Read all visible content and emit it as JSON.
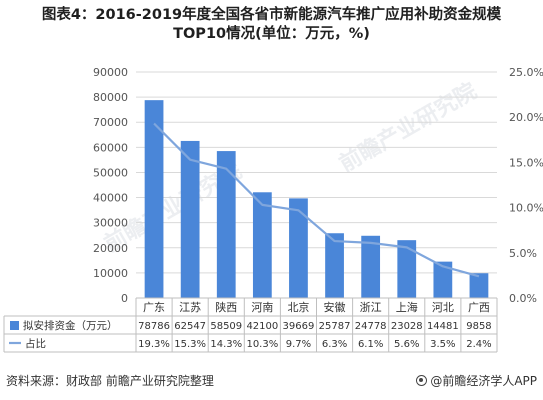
{
  "title_line1": "图表4：2016-2019年度全国各省市新能源汽车推广应用补助资金规模",
  "title_line2": "TOP10情况(单位：万元，%)",
  "source": "资料来源：财政部 前瞻产业研究院整理",
  "brand": "@前瞻经济学人APP",
  "watermarks": [
    "前瞻产业研究院",
    "前瞻产业研究院"
  ],
  "colors": {
    "bar": "#4a86d8",
    "line": "#7fa6dd",
    "grid": "#d9d9d9",
    "axis_text": "#555555"
  },
  "chart_data": {
    "type": "bar",
    "categories": [
      "广东",
      "江苏",
      "陕西",
      "河南",
      "北京",
      "安徽",
      "浙江",
      "上海",
      "河北",
      "广西"
    ],
    "series": [
      {
        "name": "拟安排资金（万元）",
        "type": "bar",
        "axis": "left",
        "values": [
          78786,
          62547,
          58509,
          42100,
          39669,
          25787,
          24778,
          23028,
          14481,
          9858
        ],
        "labels": [
          "78786",
          "62547",
          "58509",
          "42100",
          "39669",
          "25787",
          "24778",
          "23028",
          "14481",
          "9858"
        ]
      },
      {
        "name": "占比",
        "type": "line",
        "axis": "right",
        "values": [
          19.3,
          15.3,
          14.3,
          10.3,
          9.7,
          6.3,
          6.1,
          5.6,
          3.5,
          2.4
        ],
        "labels": [
          "19.3%",
          "15.3%",
          "14.3%",
          "10.3%",
          "9.7%",
          "6.3%",
          "6.1%",
          "5.6%",
          "3.5%",
          "2.4%"
        ]
      }
    ],
    "y_left": {
      "ylim": [
        0,
        90000
      ],
      "ticks": [
        "0",
        "10000",
        "20000",
        "30000",
        "40000",
        "50000",
        "60000",
        "70000",
        "80000",
        "90000"
      ]
    },
    "y_right": {
      "ylim": [
        0,
        25
      ],
      "ticks": [
        "0.0%",
        "5.0%",
        "10.0%",
        "15.0%",
        "20.0%",
        "25.0%"
      ]
    },
    "grid": true,
    "legend": "data-table-below"
  }
}
